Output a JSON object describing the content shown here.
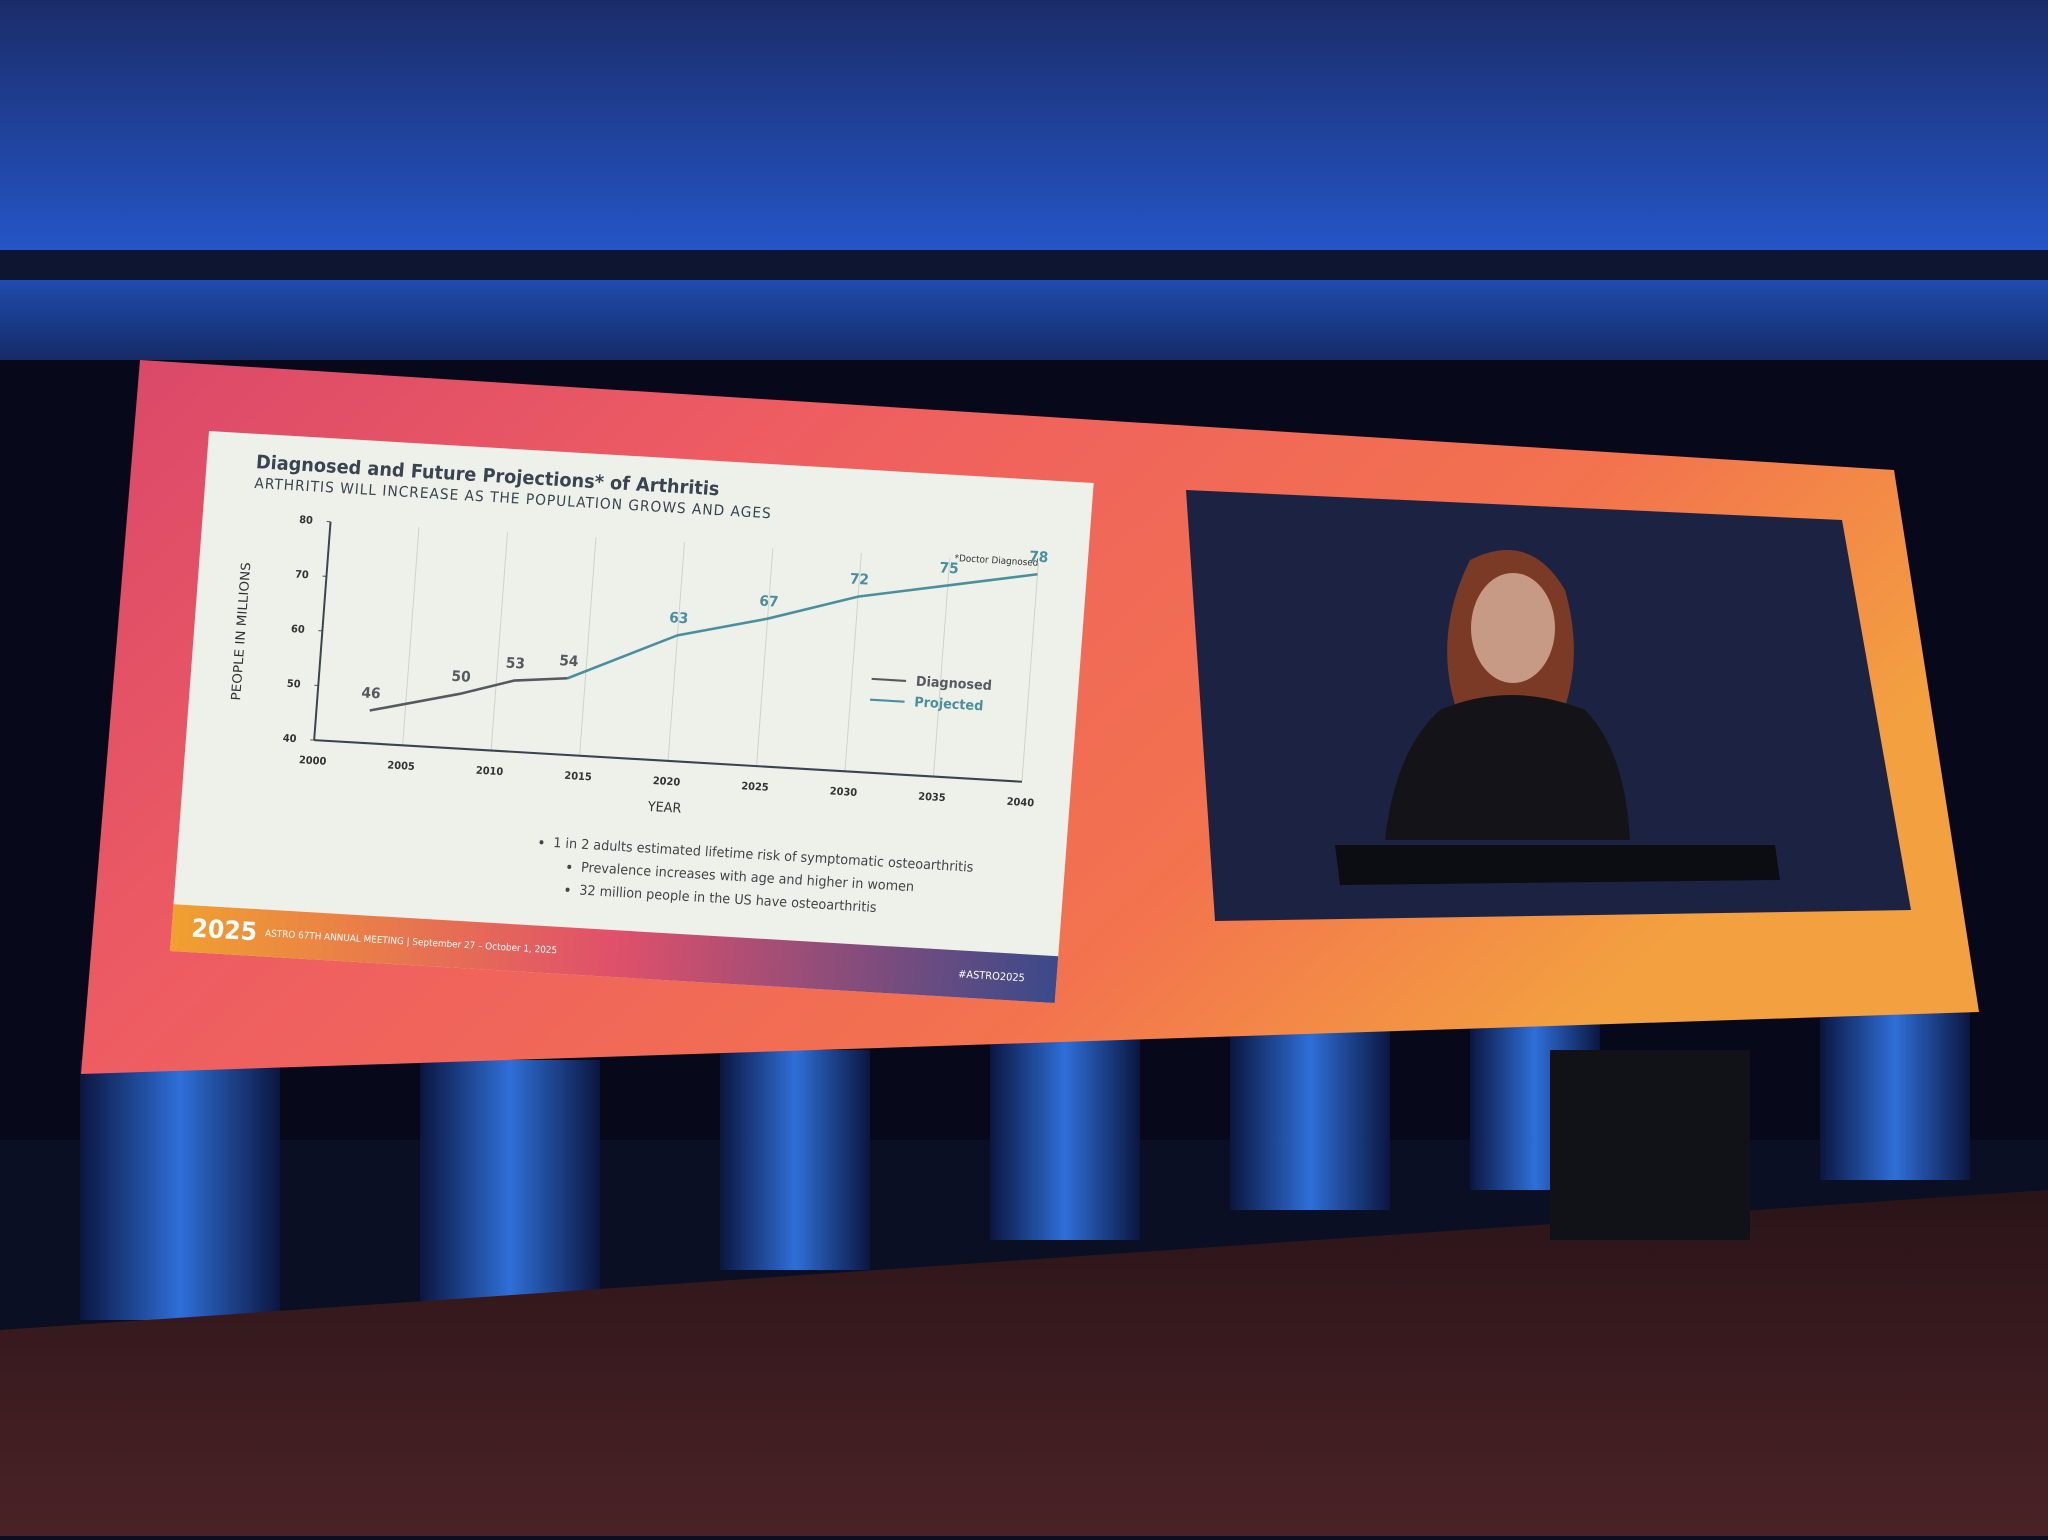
{
  "chart_data": {
    "type": "line",
    "title": "Diagnosed and Future Projections* of Arthritis",
    "subtitle": "ARTHRITIS WILL INCREASE AS THE POPULATION GROWS AND AGES",
    "note": "*Doctor Diagnosed",
    "y_label": "PEOPLE IN MILLIONS",
    "x_label": "YEAR",
    "x": [
      2003,
      2008,
      2011,
      2014,
      2020,
      2025,
      2030,
      2035,
      2040
    ],
    "series": [
      {
        "name": "Diagnosed",
        "color": "#555a60",
        "values": [
          46,
          50,
          53,
          54,
          null,
          null,
          null,
          null,
          null
        ]
      },
      {
        "name": "Projected",
        "color": "#4a8f9c",
        "values": [
          null,
          null,
          null,
          54,
          63,
          67,
          72,
          75,
          78
        ]
      }
    ],
    "xlim": [
      2000,
      2040
    ],
    "xticks": [
      2000,
      2005,
      2010,
      2015,
      2020,
      2025,
      2030,
      2035,
      2040
    ],
    "ylim": [
      40,
      80
    ],
    "yticks": [
      40,
      50,
      60,
      70,
      80
    ],
    "grid": true,
    "legend": "right"
  },
  "slide": {
    "bullets": [
      "1 in 2 adults estimated lifetime risk of symptomatic osteoarthritis",
      "Prevalence increases with age and higher in women",
      "32 million people in the US have osteoarthritis"
    ]
  },
  "footer": {
    "logo": "2025",
    "meeting": "ASTRO 67TH ANNUAL MEETING | September 27 – October 1, 2025",
    "hashtag": "#ASTRO2025"
  }
}
